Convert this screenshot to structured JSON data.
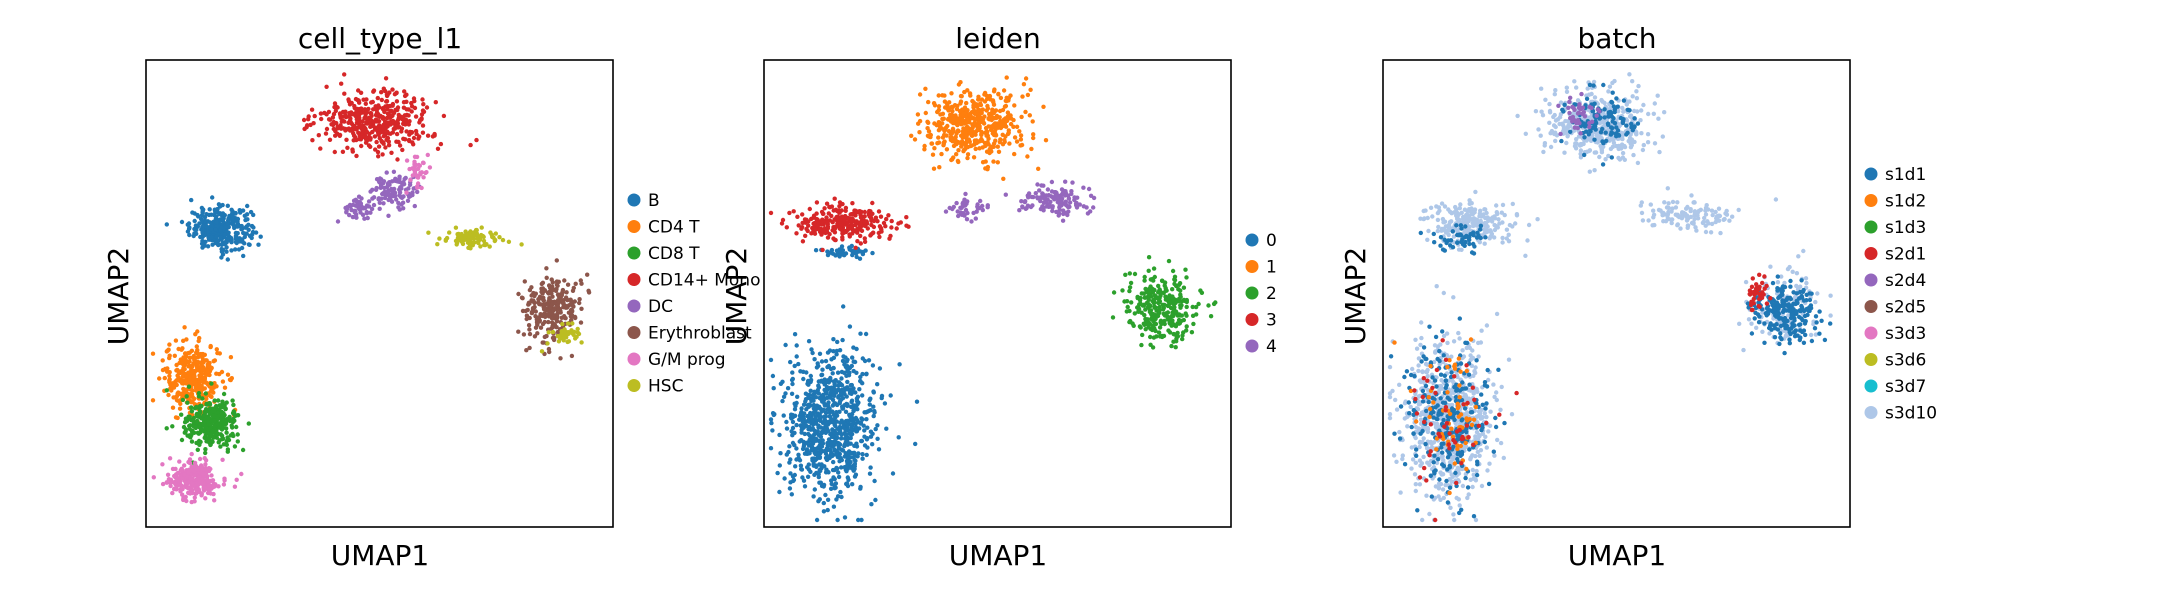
{
  "chart_data": [
    {
      "type": "scatter",
      "title": "cell_type_l1",
      "xlabel": "UMAP1",
      "ylabel": "UMAP2",
      "ticks": "none",
      "legend": "right",
      "categories": [
        "B",
        "CD4 T",
        "CD8 T",
        "CD14+ Mono",
        "DC",
        "Erythroblast",
        "G/M prog",
        "HSC"
      ],
      "colors": [
        "#1f77b4",
        "#ff7f0e",
        "#2ca02c",
        "#d62728",
        "#9467bd",
        "#8c564b",
        "#e377c2",
        "#bcbd22"
      ],
      "clusters": [
        {
          "cat": 0,
          "cx": 0.16,
          "cy": 0.64,
          "rx": 0.06,
          "ry": 0.04,
          "n": 320
        },
        {
          "cat": 1,
          "cx": 0.1,
          "cy": 0.32,
          "rx": 0.055,
          "ry": 0.07,
          "n": 340
        },
        {
          "cat": 2,
          "cx": 0.14,
          "cy": 0.22,
          "rx": 0.055,
          "ry": 0.05,
          "n": 300
        },
        {
          "cat": 3,
          "cx": 0.49,
          "cy": 0.87,
          "rx": 0.11,
          "ry": 0.055,
          "n": 420
        },
        {
          "cat": 4,
          "cx": 0.53,
          "cy": 0.72,
          "rx": 0.05,
          "ry": 0.03,
          "n": 110
        },
        {
          "cat": 4,
          "cx": 0.46,
          "cy": 0.68,
          "rx": 0.03,
          "ry": 0.02,
          "n": 50
        },
        {
          "cat": 5,
          "cx": 0.87,
          "cy": 0.47,
          "rx": 0.055,
          "ry": 0.065,
          "n": 260
        },
        {
          "cat": 6,
          "cx": 0.1,
          "cy": 0.1,
          "rx": 0.05,
          "ry": 0.035,
          "n": 260
        },
        {
          "cat": 6,
          "cx": 0.58,
          "cy": 0.76,
          "rx": 0.02,
          "ry": 0.04,
          "n": 40
        },
        {
          "cat": 7,
          "cx": 0.7,
          "cy": 0.62,
          "rx": 0.06,
          "ry": 0.02,
          "n": 90
        },
        {
          "cat": 7,
          "cx": 0.9,
          "cy": 0.41,
          "rx": 0.03,
          "ry": 0.02,
          "n": 40
        }
      ]
    },
    {
      "type": "scatter",
      "title": "leiden",
      "xlabel": "UMAP1",
      "ylabel": "UMAP2",
      "ticks": "none",
      "legend": "right",
      "categories": [
        "0",
        "1",
        "2",
        "3",
        "4"
      ],
      "colors": [
        "#1f77b4",
        "#ff7f0e",
        "#2ca02c",
        "#d62728",
        "#9467bd"
      ],
      "clusters": [
        {
          "cat": 0,
          "cx": 0.14,
          "cy": 0.22,
          "rx": 0.09,
          "ry": 0.14,
          "n": 820
        },
        {
          "cat": 0,
          "cx": 0.18,
          "cy": 0.59,
          "rx": 0.05,
          "ry": 0.01,
          "n": 40
        },
        {
          "cat": 1,
          "cx": 0.45,
          "cy": 0.86,
          "rx": 0.1,
          "ry": 0.07,
          "n": 460
        },
        {
          "cat": 2,
          "cx": 0.85,
          "cy": 0.47,
          "rx": 0.07,
          "ry": 0.07,
          "n": 300
        },
        {
          "cat": 3,
          "cx": 0.17,
          "cy": 0.65,
          "rx": 0.09,
          "ry": 0.035,
          "n": 280
        },
        {
          "cat": 4,
          "cx": 0.62,
          "cy": 0.7,
          "rx": 0.07,
          "ry": 0.03,
          "n": 130
        },
        {
          "cat": 4,
          "cx": 0.44,
          "cy": 0.68,
          "rx": 0.035,
          "ry": 0.02,
          "n": 40
        }
      ]
    },
    {
      "type": "scatter",
      "title": "batch",
      "xlabel": "UMAP1",
      "ylabel": "UMAP2",
      "ticks": "none",
      "legend": "right",
      "categories": [
        "s1d1",
        "s1d2",
        "s1d3",
        "s2d1",
        "s2d4",
        "s2d5",
        "s3d3",
        "s3d6",
        "s3d7",
        "s3d10"
      ],
      "colors": [
        "#1f77b4",
        "#ff7f0e",
        "#2ca02c",
        "#d62728",
        "#9467bd",
        "#8c564b",
        "#e377c2",
        "#bcbd22",
        "#17becf",
        "#aec7e8"
      ],
      "clusters": [
        {
          "cat": 9,
          "cx": 0.14,
          "cy": 0.23,
          "rx": 0.085,
          "ry": 0.15,
          "n": 700
        },
        {
          "cat": 0,
          "cx": 0.14,
          "cy": 0.23,
          "rx": 0.08,
          "ry": 0.14,
          "n": 260
        },
        {
          "cat": 1,
          "cx": 0.14,
          "cy": 0.23,
          "rx": 0.08,
          "ry": 0.14,
          "n": 60
        },
        {
          "cat": 3,
          "cx": 0.14,
          "cy": 0.23,
          "rx": 0.08,
          "ry": 0.14,
          "n": 50
        },
        {
          "cat": 9,
          "cx": 0.46,
          "cy": 0.86,
          "rx": 0.1,
          "ry": 0.07,
          "n": 420
        },
        {
          "cat": 0,
          "cx": 0.47,
          "cy": 0.87,
          "rx": 0.07,
          "ry": 0.05,
          "n": 120
        },
        {
          "cat": 4,
          "cx": 0.42,
          "cy": 0.88,
          "rx": 0.04,
          "ry": 0.04,
          "n": 40
        },
        {
          "cat": 9,
          "cx": 0.85,
          "cy": 0.47,
          "rx": 0.07,
          "ry": 0.07,
          "n": 140
        },
        {
          "cat": 0,
          "cx": 0.86,
          "cy": 0.46,
          "rx": 0.06,
          "ry": 0.06,
          "n": 220
        },
        {
          "cat": 3,
          "cx": 0.8,
          "cy": 0.5,
          "rx": 0.02,
          "ry": 0.04,
          "n": 40
        },
        {
          "cat": 9,
          "cx": 0.18,
          "cy": 0.65,
          "rx": 0.09,
          "ry": 0.04,
          "n": 230
        },
        {
          "cat": 0,
          "cx": 0.17,
          "cy": 0.62,
          "rx": 0.06,
          "ry": 0.02,
          "n": 50
        },
        {
          "cat": 9,
          "cx": 0.65,
          "cy": 0.67,
          "rx": 0.1,
          "ry": 0.03,
          "n": 120
        }
      ]
    }
  ]
}
